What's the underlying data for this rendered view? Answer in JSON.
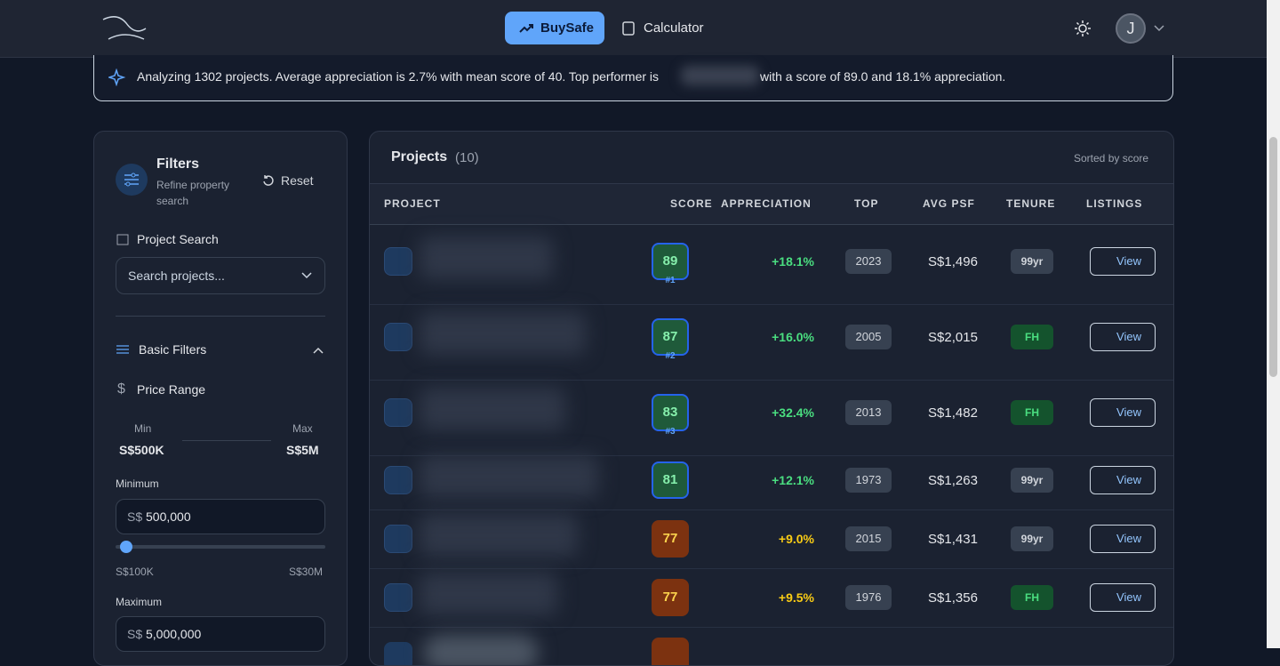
{
  "nav": {
    "items": [
      "BuySafe",
      "Calculator"
    ],
    "avatar": "J"
  },
  "banner": {
    "text_before": "Analyzing 1302 projects. Average appreciation is 2.7% with mean score of 40. Top performer is",
    "text_after": "with a score of 89.0 and 18.1% appreciation."
  },
  "filters": {
    "title": "Filters",
    "subtitle": "Refine property search",
    "reset": "Reset",
    "search_label": "Project Search",
    "search_placeholder": "Search projects...",
    "basic_filters": "Basic Filters",
    "price_range": "Price Range",
    "min_label": "Min",
    "max_label": "Max",
    "min_value": "S$500K",
    "max_value": "S$5M",
    "minimum_label": "Minimum",
    "currency": "S$",
    "minimum_input": "500,000",
    "slider_min": "S$100K",
    "slider_max": "S$30M",
    "maximum_label": "Maximum",
    "maximum_input": "5,000,000"
  },
  "projects": {
    "title": "Projects",
    "count": "(10)",
    "sort_note": "Sorted by score",
    "columns": [
      "PROJECT",
      "SCORE",
      "APPRECIATION",
      "TOP",
      "AVG PSF",
      "TENURE",
      "LISTINGS"
    ],
    "view_label": "View",
    "rows": [
      {
        "score": "89",
        "rank": "#1",
        "appreciation": "+18.1%",
        "top": "2023",
        "psf": "S$1,496",
        "tenure": "99yr",
        "score_color": "#1f5a3a",
        "appreciation_color": "#4ade80",
        "tenure_color": "#374151"
      },
      {
        "score": "87",
        "rank": "#2",
        "appreciation": "+16.0%",
        "top": "2005",
        "psf": "S$2,015",
        "tenure": "FH",
        "score_color": "#1f5a3a",
        "appreciation_color": "#4ade80",
        "tenure_color": "#14532d"
      },
      {
        "score": "83",
        "rank": "#3",
        "appreciation": "+32.4%",
        "top": "2013",
        "psf": "S$1,482",
        "tenure": "FH",
        "score_color": "#1f5a3a",
        "appreciation_color": "#4ade80",
        "tenure_color": "#14532d"
      },
      {
        "score": "81",
        "appreciation": "+12.1%",
        "top": "1973",
        "psf": "S$1,263",
        "tenure": "99yr",
        "score_color": "#1f5a3a",
        "appreciation_color": "#4ade80",
        "tenure_color": "#374151"
      },
      {
        "score": "77",
        "appreciation": "+9.0%",
        "top": "2015",
        "psf": "S$1,431",
        "tenure": "99yr",
        "score_color": "#7c3210",
        "appreciation_color": "#facc15",
        "tenure_color": "#374151"
      },
      {
        "score": "77",
        "appreciation": "+9.5%",
        "top": "1976",
        "psf": "S$1,356",
        "tenure": "FH",
        "score_color": "#7c3210",
        "appreciation_color": "#facc15",
        "tenure_color": "#14532d"
      }
    ]
  }
}
